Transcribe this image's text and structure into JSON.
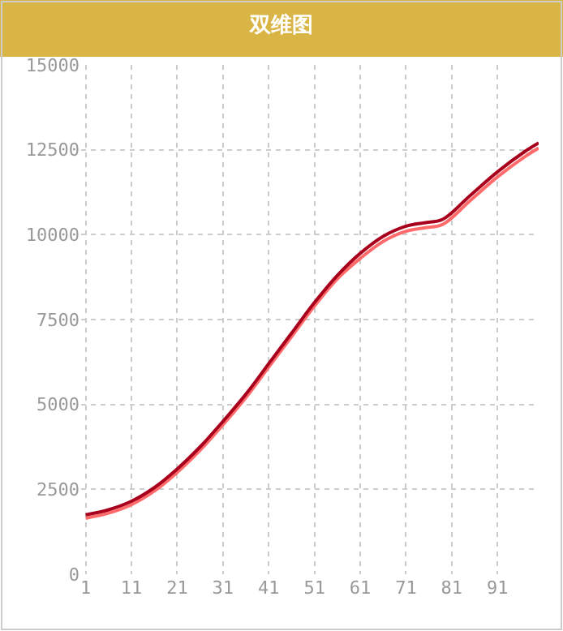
{
  "chart_data": {
    "type": "line",
    "title": "双维图",
    "xlim": [
      0,
      100
    ],
    "xticks": [
      1,
      11,
      21,
      31,
      41,
      51,
      61,
      71,
      81,
      91
    ],
    "ylim": [
      0,
      15000
    ],
    "yticks": [
      0,
      2500,
      5000,
      7500,
      10000,
      12500,
      15000
    ],
    "grid": true,
    "marker": "none",
    "line_style": "solid",
    "x": [
      1,
      6,
      11,
      16,
      21,
      26,
      31,
      36,
      41,
      46,
      51,
      56,
      61,
      66,
      71,
      75,
      79,
      85,
      91,
      97,
      100
    ],
    "series": [
      {
        "color": "#ff6b6b",
        "values": [
          1650,
          1800,
          2050,
          2450,
          3000,
          3650,
          4400,
          5200,
          6100,
          7000,
          7900,
          8700,
          9300,
          9800,
          10100,
          10200,
          10300,
          11000,
          11700,
          12300,
          12550
        ]
      },
      {
        "color": "#a8001c",
        "values": [
          1750,
          1900,
          2150,
          2550,
          3100,
          3750,
          4500,
          5300,
          6200,
          7100,
          8000,
          8800,
          9450,
          9950,
          10250,
          10350,
          10450,
          11150,
          11850,
          12450,
          12700
        ]
      }
    ]
  }
}
